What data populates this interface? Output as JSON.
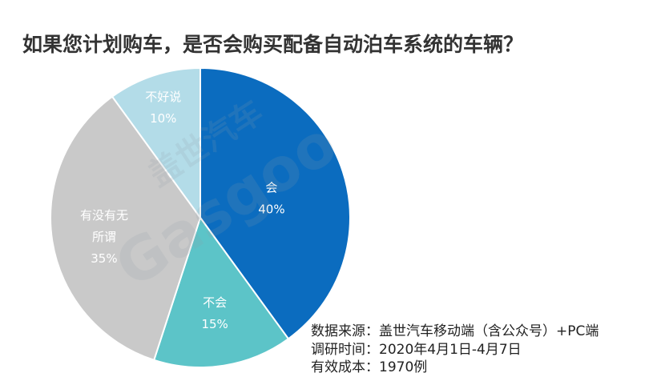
{
  "chart_data": {
    "type": "pie",
    "title": "如果您计划购车，是否会购买配备自动泊车系统的车辆？",
    "categories": [
      "会",
      "不会",
      "有没有无所谓",
      "不好说"
    ],
    "values": [
      40,
      15,
      35,
      10
    ],
    "unit": "%",
    "colors": [
      "#0B6CBF",
      "#5CC4C8",
      "#C9C9C9",
      "#B3DCE8"
    ],
    "label_color": "#FFFFFF"
  },
  "source_notes": [
    "数据来源：盖世汽车移动端（含公众号）+PC端",
    "调研时间：2020年4月1日-4月7日",
    "有效成本：1970例"
  ],
  "watermark": {
    "cn": "盖世汽车",
    "en": "Gasgoo"
  }
}
